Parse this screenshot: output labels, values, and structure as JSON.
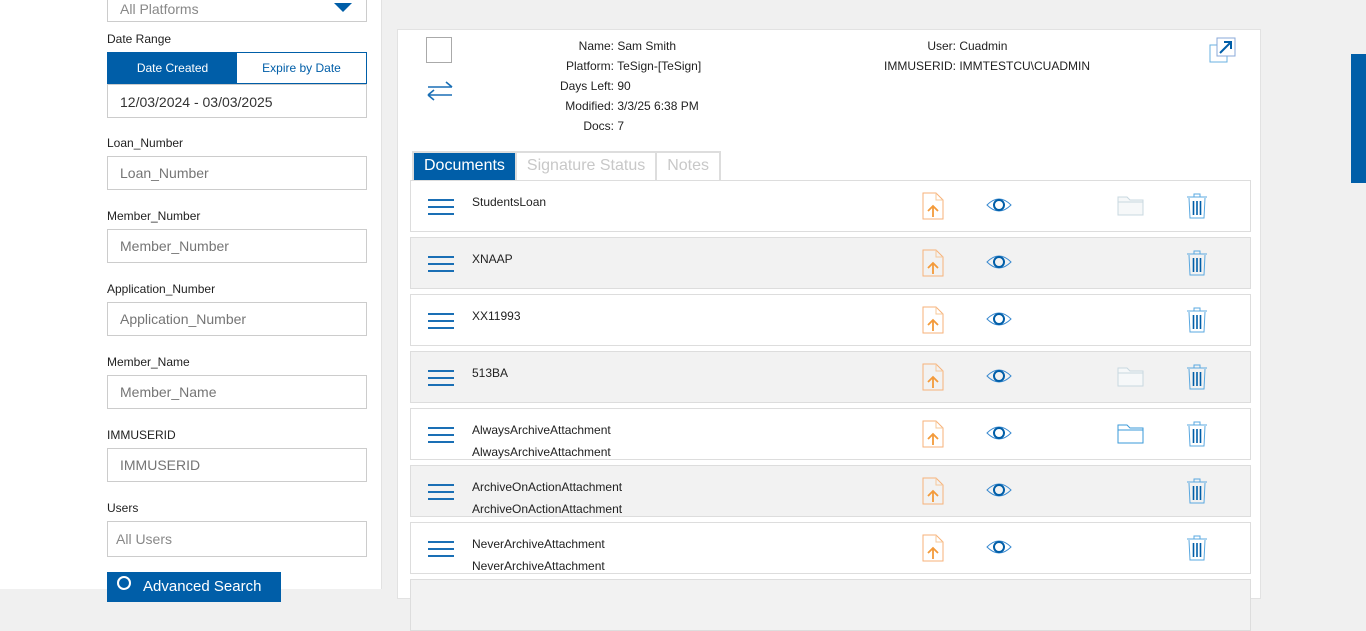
{
  "sidebar": {
    "platform_select": "All Platforms",
    "date_range_label": "Date Range",
    "date_tabs": [
      "Date Created",
      "Expire by Date"
    ],
    "date_value": "12/03/2024 - 03/03/2025",
    "fields": [
      {
        "label": "Loan_Number",
        "placeholder": "Loan_Number"
      },
      {
        "label": "Member_Number",
        "placeholder": "Member_Number"
      },
      {
        "label": "Application_Number",
        "placeholder": "Application_Number"
      },
      {
        "label": "Member_Name",
        "placeholder": "Member_Name"
      },
      {
        "label": "IMMUSERID",
        "placeholder": "IMMUSERID"
      }
    ],
    "users_label": "Users",
    "users_select": "All Users",
    "advanced_search": "Advanced Search"
  },
  "details": {
    "left": [
      {
        "k": "Name:",
        "v": "Sam Smith"
      },
      {
        "k": "Platform:",
        "v": "TeSign-[TeSign]"
      },
      {
        "k": "Days Left:",
        "v": "90"
      },
      {
        "k": "Modified:",
        "v": "3/3/25 6:38 PM"
      },
      {
        "k": "Docs:",
        "v": "7"
      }
    ],
    "right": [
      {
        "k": "User:",
        "v": "Cuadmin"
      },
      {
        "k": "IMMUSERID:",
        "v": "IMMTESTCU\\CUADMIN"
      }
    ]
  },
  "tabs": [
    "Documents",
    "Signature Status",
    "Notes"
  ],
  "documents": [
    {
      "lines": [
        "StudentsLoan"
      ],
      "folder": "disabled"
    },
    {
      "lines": [
        "XNAAP"
      ],
      "folder": "none"
    },
    {
      "lines": [
        "XX11993"
      ],
      "folder": "none"
    },
    {
      "lines": [
        "513BA"
      ],
      "folder": "disabled"
    },
    {
      "lines": [
        "AlwaysArchiveAttachment",
        "AlwaysArchiveAttachment"
      ],
      "folder": "active"
    },
    {
      "lines": [
        "ArchiveOnActionAttachment",
        "ArchiveOnActionAttachment"
      ],
      "folder": "none"
    },
    {
      "lines": [
        "NeverArchiveAttachment",
        "NeverArchiveAttachment"
      ],
      "folder": "none"
    }
  ],
  "colors": {
    "accent": "#005ea8",
    "upload": "#f7a35c"
  }
}
